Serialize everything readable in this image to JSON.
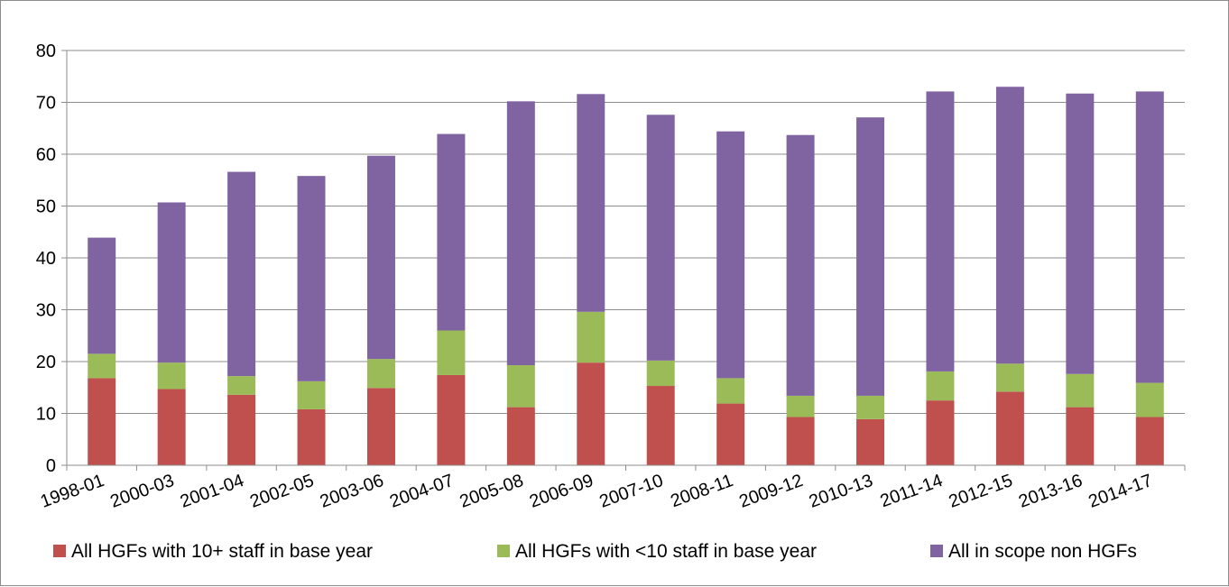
{
  "chart_data": {
    "type": "bar",
    "stacked": true,
    "categories": [
      "1998-01",
      "2000-03",
      "2001-04",
      "2002-05",
      "2003-06",
      "2004-07",
      "2005-08",
      "2006-09",
      "2007-10",
      "2008-11",
      "2009-12",
      "2010-13",
      "2011-14",
      "2012-15",
      "2013-16",
      "2014-17"
    ],
    "series": [
      {
        "name": "All HGFs with 10+ staff in base year",
        "color": "#c0504d",
        "values": [
          16.8,
          14.7,
          13.6,
          10.8,
          14.9,
          17.4,
          11.2,
          19.8,
          15.3,
          11.9,
          9.3,
          8.9,
          12.5,
          14.2,
          11.2,
          9.3
        ]
      },
      {
        "name": "All HGFs with <10 staff in base year",
        "color": "#9bbb59",
        "values": [
          4.7,
          5.1,
          3.6,
          5.4,
          5.6,
          8.6,
          8.1,
          9.8,
          4.9,
          4.9,
          4.1,
          4.5,
          5.6,
          5.4,
          6.4,
          6.6
        ]
      },
      {
        "name": "All in scope non HGFs",
        "color": "#8064a2",
        "values": [
          22.4,
          30.9,
          39.4,
          39.6,
          39.2,
          37.9,
          50.9,
          42.0,
          47.4,
          47.6,
          50.3,
          53.7,
          54.0,
          53.4,
          54.1,
          56.2
        ]
      }
    ],
    "title": "",
    "xlabel": "",
    "ylabel": "",
    "ylim": [
      0,
      80
    ],
    "yticks": [
      "0",
      "10",
      "20",
      "30",
      "40",
      "50",
      "60",
      "70",
      "80"
    ],
    "grid": true,
    "legend_position": "bottom"
  }
}
